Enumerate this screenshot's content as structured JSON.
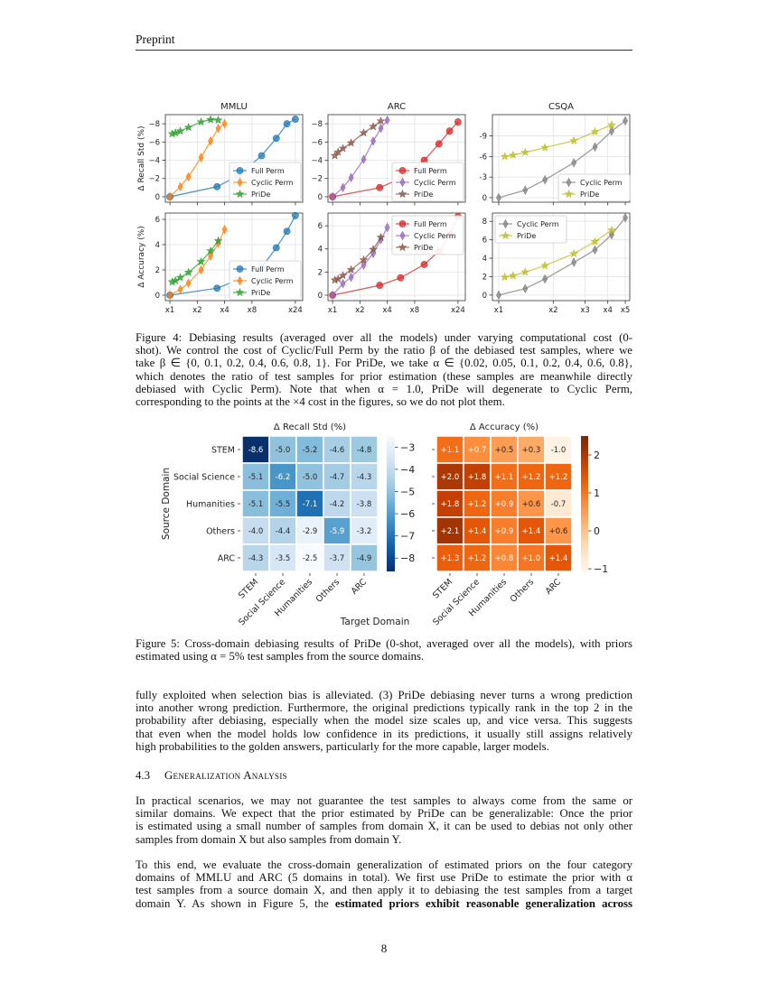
{
  "header": {
    "running_title": "Preprint"
  },
  "fig4_caption": [
    "Figure 4: Debiasing results (averaged over all the models) under varying computational cost (0-",
    "shot). We control the cost of Cyclic/Full Perm by the ratio β of the debiased test samples, where we",
    "take β ∈ {0, 0.1, 0.2, 0.4, 0.6, 0.8, 1}. For PriDe, we take α ∈ {0.02, 0.05, 0.1, 0.2, 0.4, 0.6, 0.8},",
    "which denotes the ratio of test samples for prior estimation (these samples are meanwhile directly",
    "debiased with Cyclic Perm). Note that when α = 1.0, PriDe will degenerate to Cyclic Perm,",
    "corresponding to the points at the ×4 cost in the figures, so we do not plot them."
  ],
  "fig5_caption": [
    "Figure 5: Cross-domain debiasing results of PriDe (0-shot, averaged over all the models), with priors",
    "estimated using α = 5% test samples from the source domains."
  ],
  "para1": [
    "fully exploited when selection bias is alleviated. (3) PriDe debiasing never turns a wrong prediction",
    "into another wrong prediction. Furthermore, the original predictions typically rank in the top 2 in the",
    "probability after debiasing, especially when the model size scales up, and vice versa. This suggests",
    "that even when the model holds low confidence in its predictions, it usually still assigns relatively",
    "high probabilities to the golden answers, particularly for the more capable, larger models."
  ],
  "section": {
    "number": "4.3",
    "title": "Generalization Analysis"
  },
  "para2": [
    "In practical scenarios, we may not guarantee the test samples to always come from the same or",
    "similar domains. We expect that the prior estimated by PriDe can be generalizable: Once the prior",
    "is estimated using a small number of samples from domain X, it can be used to debias not only other",
    "samples from domain X but also samples from domain Y."
  ],
  "para3": [
    "To this end, we evaluate the cross-domain generalization of estimated priors on the four category",
    "domains of MMLU and ARC (5 domains in total). We first use PriDe to estimate the prior with α",
    "test samples from a source domain X, and then apply it to debiasing the test samples from a target"
  ],
  "para3_last": {
    "normal": "domain Y. As shown in Figure 5, the ",
    "bold": "estimated priors exhibit reasonable generalization across"
  },
  "page_number": "8",
  "chart_data": [
    {
      "type": "line",
      "title": "MMLU",
      "ylabel": "Δ Recall Std (%)",
      "x_scale": "log",
      "xlim": [
        0.89,
        28.9
      ],
      "ylim": [
        0.6,
        -9.0
      ],
      "xticks": [
        1,
        2,
        4,
        8,
        24
      ],
      "xtick_labels": [],
      "yticks": [
        0,
        -2,
        -4,
        -6,
        -8
      ],
      "ytick_labels": [
        "0",
        "−2",
        "−4",
        "−6",
        "−8"
      ],
      "grid": true,
      "legend": "lower-right",
      "series": [
        {
          "name": "Full Perm",
          "color": "#1f77b4",
          "marker": "circle",
          "x": [
            1,
            3.3,
            5.6,
            10.2,
            14.8,
            19.4,
            24
          ],
          "y": [
            0,
            -1.1,
            -2.3,
            -4.5,
            -6.4,
            -8.0,
            -8.5
          ]
        },
        {
          "name": "Cyclic Perm",
          "color": "#ff7f0e",
          "marker": "thin-diamond",
          "x": [
            1,
            1.3,
            1.6,
            2.2,
            2.8,
            3.4,
            4
          ],
          "y": [
            0,
            -1.1,
            -2.2,
            -4.3,
            -6.1,
            -7.5,
            -8.0
          ]
        },
        {
          "name": "PriDe",
          "color": "#2ca02c",
          "marker": "star",
          "x": [
            1.06,
            1.15,
            1.3,
            1.6,
            2.2,
            2.8,
            3.4
          ],
          "y": [
            -6.9,
            -7.0,
            -7.2,
            -7.6,
            -8.2,
            -8.45,
            -8.4
          ]
        }
      ]
    },
    {
      "type": "line",
      "title": "ARC",
      "ylabel": "",
      "x_scale": "log",
      "xlim": [
        0.89,
        28.9
      ],
      "ylim": [
        0.6,
        -9.0
      ],
      "xticks": [
        1,
        2,
        4,
        8,
        24
      ],
      "xtick_labels": [],
      "yticks": [
        0,
        -2,
        -4,
        -6,
        -8
      ],
      "ytick_labels": [
        "0",
        "−2",
        "−4",
        "−6",
        "−8"
      ],
      "grid": true,
      "legend": "lower-right",
      "series": [
        {
          "name": "Full Perm",
          "color": "#d62728",
          "marker": "circle",
          "x": [
            1,
            3.3,
            5.6,
            10.2,
            14.8,
            19.4,
            24
          ],
          "y": [
            0,
            -1.0,
            -2.0,
            -4.0,
            -5.8,
            -7.2,
            -8.2
          ]
        },
        {
          "name": "Cyclic Perm",
          "color": "#9467bd",
          "marker": "thin-diamond",
          "x": [
            1,
            1.3,
            1.6,
            2.2,
            2.8,
            3.4,
            4
          ],
          "y": [
            0,
            -1.0,
            -2.1,
            -4.1,
            -6.1,
            -7.5,
            -8.4
          ]
        },
        {
          "name": "PriDe",
          "color": "#8c564b",
          "marker": "star",
          "x": [
            1.06,
            1.15,
            1.3,
            1.6,
            2.2,
            2.8,
            3.4
          ],
          "y": [
            -4.5,
            -4.9,
            -5.3,
            -5.9,
            -7.0,
            -7.7,
            -8.3
          ]
        }
      ]
    },
    {
      "type": "line",
      "title": "CSQA",
      "ylabel": "",
      "x_scale": "log",
      "xlim": [
        0.923,
        5.29
      ],
      "ylim": [
        0.66,
        -12.1
      ],
      "xticks": [
        1,
        2,
        3,
        4,
        5
      ],
      "xtick_labels": [],
      "yticks": [
        0,
        -3,
        -6,
        -9
      ],
      "ytick_labels": [
        "0",
        "-3",
        "-6",
        "-9"
      ],
      "grid": true,
      "legend": "lower-right",
      "series": [
        {
          "name": "Cyclic Perm",
          "color": "#7f7f7f",
          "marker": "thin-diamond",
          "x": [
            1,
            1.4,
            1.8,
            2.6,
            3.4,
            4.2,
            5
          ],
          "y": [
            0,
            -1.1,
            -2.6,
            -5.1,
            -7.4,
            -9.7,
            -11.2
          ]
        },
        {
          "name": "PriDe",
          "color": "#bcbd22",
          "marker": "star",
          "x": [
            1.08,
            1.2,
            1.4,
            1.8,
            2.6,
            3.4,
            4.2
          ],
          "y": [
            -6.0,
            -6.2,
            -6.6,
            -7.3,
            -8.3,
            -9.6,
            -10.6
          ]
        }
      ]
    },
    {
      "type": "line",
      "title": "",
      "ylabel": "Δ Accuracy (%)",
      "x_scale": "log",
      "xlim": [
        0.89,
        28.9
      ],
      "ylim": [
        -0.43,
        6.5
      ],
      "xticks": [
        1,
        2,
        4,
        8,
        24
      ],
      "xtick_labels": [
        "x1",
        "x2",
        "x4",
        "x8",
        "x24"
      ],
      "yticks": [
        0,
        2,
        4,
        6
      ],
      "ytick_labels": [
        "0",
        "2",
        "4",
        "6"
      ],
      "grid": true,
      "legend": "lower-right",
      "series": [
        {
          "name": "Full Perm",
          "color": "#1f77b4",
          "marker": "circle",
          "x": [
            1,
            3.3,
            5.6,
            10.2,
            14.8,
            19.4,
            24
          ],
          "y": [
            0,
            0.55,
            1.2,
            2.2,
            3.75,
            5.05,
            6.3
          ]
        },
        {
          "name": "Cyclic Perm",
          "color": "#ff7f0e",
          "marker": "thin-diamond",
          "x": [
            1,
            1.3,
            1.6,
            2.2,
            2.8,
            3.4,
            4
          ],
          "y": [
            0,
            0.45,
            0.95,
            2.0,
            3.1,
            4.1,
            5.2
          ]
        },
        {
          "name": "PriDe",
          "color": "#2ca02c",
          "marker": "star",
          "x": [
            1.06,
            1.15,
            1.3,
            1.6,
            2.2,
            2.8,
            3.4
          ],
          "y": [
            1.05,
            1.15,
            1.4,
            1.8,
            2.65,
            3.5,
            4.3
          ]
        }
      ]
    },
    {
      "type": "line",
      "title": "",
      "ylabel": "",
      "x_scale": "log",
      "xlim": [
        0.89,
        28.9
      ],
      "ylim": [
        -0.47,
        7.1
      ],
      "xticks": [
        1,
        2,
        4,
        8,
        24
      ],
      "xtick_labels": [
        "x1",
        "x2",
        "x4",
        "x8",
        "x24"
      ],
      "yticks": [
        0,
        2,
        4,
        6
      ],
      "ytick_labels": [
        "0",
        "2",
        "4",
        "6"
      ],
      "grid": true,
      "legend": "upper-right",
      "series": [
        {
          "name": "Full Perm",
          "color": "#d62728",
          "marker": "circle",
          "x": [
            1,
            3.3,
            5.6,
            10.2,
            14.8,
            19.4,
            24
          ],
          "y": [
            0,
            0.85,
            1.5,
            2.65,
            3.8,
            5.2,
            6.8
          ]
        },
        {
          "name": "Cyclic Perm",
          "color": "#9467bd",
          "marker": "thin-diamond",
          "x": [
            1,
            1.3,
            1.6,
            2.2,
            2.8,
            3.4,
            4
          ],
          "y": [
            0,
            1.0,
            1.55,
            2.6,
            3.6,
            4.8,
            5.85
          ]
        },
        {
          "name": "PriDe",
          "color": "#8c564b",
          "marker": "star",
          "x": [
            1.06,
            1.15,
            1.3,
            1.6,
            2.2,
            2.8,
            3.4
          ],
          "y": [
            1.3,
            1.4,
            1.7,
            2.2,
            3.05,
            3.95,
            5.0
          ]
        }
      ]
    },
    {
      "type": "line",
      "title": "",
      "ylabel": "",
      "x_scale": "log",
      "xlim": [
        0.923,
        5.29
      ],
      "ylim": [
        -0.6,
        8.9
      ],
      "xticks": [
        1,
        2,
        3,
        4,
        5
      ],
      "xtick_labels": [
        "x1",
        "x2",
        "x3",
        "x4",
        "x5"
      ],
      "yticks": [
        0,
        2,
        4,
        6,
        8
      ],
      "ytick_labels": [
        "0",
        "2",
        "4",
        "6",
        "8"
      ],
      "grid": true,
      "legend": "upper-left",
      "series": [
        {
          "name": "Cyclic Perm",
          "color": "#7f7f7f",
          "marker": "thin-diamond",
          "x": [
            1,
            1.4,
            1.8,
            2.6,
            3.4,
            4.2,
            5
          ],
          "y": [
            0,
            0.7,
            1.75,
            3.55,
            4.9,
            6.55,
            8.4
          ]
        },
        {
          "name": "PriDe",
          "color": "#bcbd22",
          "marker": "star",
          "x": [
            1.08,
            1.2,
            1.4,
            1.8,
            2.6,
            3.4,
            4.2
          ],
          "y": [
            1.95,
            2.1,
            2.5,
            3.2,
            4.5,
            5.8,
            7.05
          ]
        }
      ]
    },
    {
      "type": "heatmap",
      "title": "Δ Recall Std (%)",
      "ylabel": "Source Domain",
      "xlabel": "Target Domain",
      "colormap": "Blues_r",
      "vlim": [
        -8.6,
        -2.5
      ],
      "rows": [
        "STEM",
        "Social Science",
        "Humanities",
        "Others",
        "ARC"
      ],
      "cols": [
        "STEM",
        "Social Science",
        "Humanities",
        "Others",
        "ARC"
      ],
      "values": [
        [
          -8.6,
          -5.0,
          -5.2,
          -4.6,
          -4.8
        ],
        [
          -5.1,
          -6.2,
          -5.0,
          -4.7,
          -4.3
        ],
        [
          -5.1,
          -5.5,
          -7.1,
          -4.2,
          -3.8
        ],
        [
          -4.0,
          -4.4,
          -2.9,
          -5.9,
          -3.2
        ],
        [
          -4.3,
          -3.5,
          -2.5,
          -3.7,
          -4.9
        ]
      ],
      "annotations": [
        [
          "-8.6",
          "-5.0",
          "-5.2",
          "-4.6",
          "-4.8"
        ],
        [
          "-5.1",
          "-6.2",
          "-5.0",
          "-4.7",
          "-4.3"
        ],
        [
          "-5.1",
          "-5.5",
          "-7.1",
          "-4.2",
          "-3.8"
        ],
        [
          "-4.0",
          "-4.4",
          "-2.9",
          "-5.9",
          "-3.2"
        ],
        [
          "-4.3",
          "-3.5",
          "-2.5",
          "-3.7",
          "-4.9"
        ]
      ],
      "colorbar_ticks": [
        -3,
        -4,
        -5,
        -6,
        -7,
        -8
      ],
      "colorbar_tick_labels": [
        "−3",
        "−4",
        "−5",
        "−6",
        "−7",
        "−8"
      ]
    },
    {
      "type": "heatmap",
      "title": "Δ Accuracy (%)",
      "colormap": "Oranges",
      "vlim": [
        -1.07,
        2.5
      ],
      "rows": [
        "STEM",
        "Social Science",
        "Humanities",
        "Others",
        "ARC"
      ],
      "cols": [
        "STEM",
        "Social Science",
        "Humanities",
        "Others",
        "ARC"
      ],
      "values": [
        [
          1.1,
          0.7,
          0.5,
          0.3,
          -1.0
        ],
        [
          2.0,
          1.8,
          1.1,
          1.2,
          1.2
        ],
        [
          1.8,
          1.2,
          0.9,
          0.6,
          -0.7
        ],
        [
          2.1,
          1.4,
          0.9,
          1.4,
          0.6
        ],
        [
          1.3,
          1.2,
          0.8,
          1.0,
          1.4
        ]
      ],
      "annotations": [
        [
          "+1.1",
          "+0.7",
          "+0.5",
          "+0.3",
          "-1.0"
        ],
        [
          "+2.0",
          "+1.8",
          "+1.1",
          "+1.2",
          "+1.2"
        ],
        [
          "+1.8",
          "+1.2",
          "+0.9",
          "+0.6",
          "-0.7"
        ],
        [
          "+2.1",
          "+1.4",
          "+0.9",
          "+1.4",
          "+0.6"
        ],
        [
          "+1.3",
          "+1.2",
          "+0.8",
          "+1.0",
          "+1.4"
        ]
      ],
      "colorbar_ticks": [
        2,
        1,
        0,
        -1
      ],
      "colorbar_tick_labels": [
        "2",
        "1",
        "0",
        "−1"
      ]
    }
  ]
}
